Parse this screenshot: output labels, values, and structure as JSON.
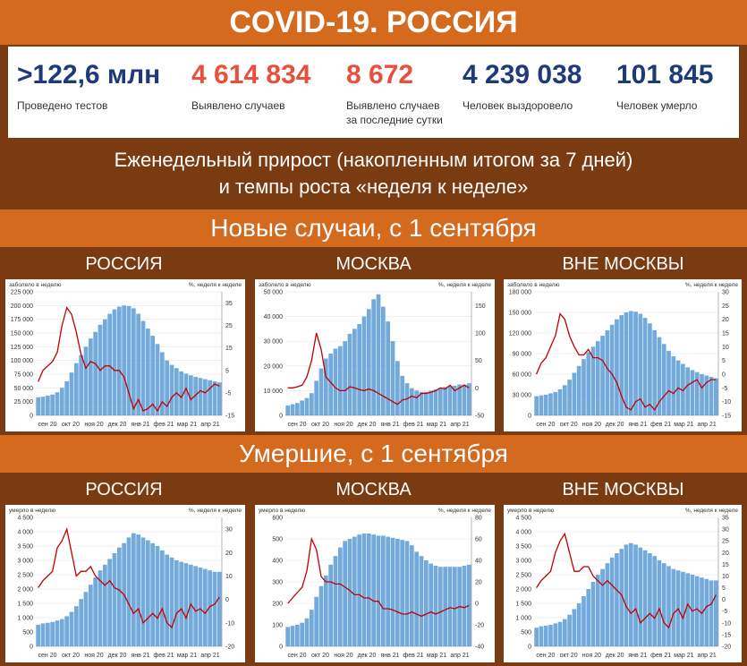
{
  "header": {
    "title": "COVID-19. РОССИЯ"
  },
  "stats": [
    {
      "value": ">122,6 млн",
      "label": "Проведено тестов",
      "color": "#1e3a7a"
    },
    {
      "value": "4 614 834",
      "label": "Выявлено случаев",
      "color": "#e8503c"
    },
    {
      "value": "8 672",
      "label": "Выявлено случаев за последние сутки",
      "color": "#e8503c"
    },
    {
      "value": "4 239 038",
      "label": "Человек выздоровело",
      "color": "#1e3a7a"
    },
    {
      "value": "101 845",
      "label": "Человек умерло",
      "color": "#1e3a7a"
    }
  ],
  "weekly": {
    "line1": "Еженедельный прирост (накопленным итогом за 7 дней)",
    "line2": "и темпы роста «неделя к неделе»"
  },
  "sections": {
    "new_cases": "Новые случаи, с 1 сентября",
    "deaths": "Умершие, с 1 сентября"
  },
  "columns": [
    "РОССИЯ",
    "МОСКВА",
    "ВНЕ МОСКВЫ"
  ],
  "colors": {
    "bars": "#5b9bd5",
    "line": "#c00000",
    "accent": "#d46a1e",
    "dark": "#7a3a12"
  },
  "chart_data": [
    {
      "type": "bar+line",
      "region": "РОССИЯ",
      "metric": "new_cases",
      "left_label": "заболело в неделю",
      "right_label": "%, неделя к неделе",
      "left_ylim": [
        0,
        225000
      ],
      "left_ticks": [
        "0",
        "25 000",
        "50 000",
        "75 000",
        "100 000",
        "125 000",
        "150 000",
        "175 000",
        "200 000",
        "225 000"
      ],
      "right_ylim": [
        -15,
        40
      ],
      "right_ticks": [
        "-15",
        "-5",
        "5",
        "15",
        "25",
        "35"
      ],
      "x_labels": [
        "сен 20",
        "окт 20",
        "ноя 20",
        "дек 20",
        "янв 21",
        "фев 21",
        "мар 21",
        "апр 21"
      ],
      "bars": [
        33000,
        34000,
        36000,
        38000,
        42000,
        50000,
        62000,
        78000,
        95000,
        110000,
        125000,
        140000,
        152000,
        165000,
        175000,
        185000,
        193000,
        198000,
        200000,
        199000,
        195000,
        185000,
        172000,
        158000,
        145000,
        130000,
        115000,
        100000,
        92000,
        86000,
        80000,
        76000,
        73000,
        70000,
        68000,
        66000,
        64000,
        62000,
        60000
      ],
      "line": [
        0,
        5,
        7,
        9,
        13,
        25,
        33,
        30,
        22,
        12,
        6,
        9,
        8,
        5,
        7,
        7,
        5,
        5,
        2,
        -5,
        -12,
        -8,
        -13,
        -12,
        -10,
        -13,
        -9,
        -11,
        -7,
        -5,
        -7,
        -3,
        -8,
        -6,
        -4,
        -5,
        -3,
        -1,
        -2
      ]
    },
    {
      "type": "bar+line",
      "region": "МОСКВА",
      "metric": "new_cases",
      "left_label": "заболело в неделю",
      "right_label": "%, неделя к неделе",
      "left_ylim": [
        0,
        50000
      ],
      "left_ticks": [
        "0",
        "10 000",
        "20 000",
        "30 000",
        "40 000",
        "50 000"
      ],
      "right_ylim": [
        -50,
        175
      ],
      "right_ticks": [
        "-50",
        "0",
        "50",
        "100",
        "150"
      ],
      "x_labels": [
        "сен 20",
        "окт 20",
        "ноя 20",
        "дек 20",
        "янв 21",
        "фев 21",
        "мар 21",
        "апр 21"
      ],
      "bars": [
        4000,
        4500,
        5000,
        6000,
        7000,
        9000,
        14000,
        19000,
        23000,
        25000,
        27000,
        28000,
        30000,
        33000,
        35000,
        37000,
        40000,
        43000,
        47000,
        49000,
        44000,
        38000,
        30000,
        22000,
        16000,
        13000,
        11000,
        10000,
        9500,
        9500,
        10000,
        10500,
        11000,
        11500,
        12000,
        12000,
        12500,
        12500,
        13000
      ],
      "line": [
        0,
        0,
        2,
        5,
        20,
        50,
        100,
        70,
        20,
        10,
        0,
        -5,
        -5,
        2,
        0,
        -3,
        -5,
        -2,
        -5,
        -10,
        -15,
        -20,
        -25,
        -30,
        -22,
        -20,
        -15,
        -18,
        -10,
        -10,
        -8,
        -5,
        0,
        -2,
        5,
        -5,
        0,
        5,
        0
      ]
    },
    {
      "type": "bar+line",
      "region": "ВНЕ МОСКВЫ",
      "metric": "new_cases",
      "left_label": "заболело в неделю",
      "right_label": "%, неделя к неделе",
      "left_ylim": [
        0,
        180000
      ],
      "left_ticks": [
        "0",
        "30 000",
        "60 000",
        "90 000",
        "120 000",
        "150 000",
        "180 000"
      ],
      "right_ylim": [
        -15,
        30
      ],
      "right_ticks": [
        "-15",
        "-10",
        "-5",
        "0",
        "5",
        "10",
        "15",
        "20",
        "25",
        "30"
      ],
      "x_labels": [
        "сен 20",
        "окт 20",
        "ноя 20",
        "дек 20",
        "янв 21",
        "фев 21",
        "мар 21",
        "апр 21"
      ],
      "bars": [
        28000,
        29000,
        30000,
        32000,
        34000,
        38000,
        44000,
        52000,
        62000,
        72000,
        82000,
        92000,
        100000,
        108000,
        116000,
        124000,
        132000,
        140000,
        146000,
        150000,
        152000,
        151000,
        148000,
        142000,
        134000,
        124000,
        114000,
        104000,
        94000,
        86000,
        80000,
        75000,
        70000,
        66000,
        63000,
        60000,
        58000,
        56000,
        54000
      ],
      "line": [
        0,
        4,
        6,
        10,
        14,
        22,
        20,
        14,
        10,
        7,
        7,
        9,
        6,
        6,
        5,
        2,
        0,
        -3,
        -8,
        -12,
        -13,
        -10,
        -9,
        -12,
        -11,
        -13,
        -10,
        -8,
        -6,
        -7,
        -5,
        -6,
        -4,
        -3,
        -2,
        -5,
        -3,
        -2,
        -2
      ]
    },
    {
      "type": "bar+line",
      "region": "РОССИЯ",
      "metric": "deaths",
      "left_label": "умерло в неделю",
      "right_label": "%, неделя к неделе",
      "left_ylim": [
        0,
        4500
      ],
      "left_ticks": [
        "0",
        "500",
        "1 000",
        "1 500",
        "2 000",
        "2 500",
        "3 000",
        "3 500",
        "4 000",
        "4 500"
      ],
      "right_ylim": [
        -20,
        35
      ],
      "right_ticks": [
        "-20",
        "-10",
        "0",
        "10",
        "20",
        "30"
      ],
      "x_labels": [
        "сен 20",
        "окт 20",
        "ноя 20",
        "дек 20",
        "янв 21",
        "фев 21",
        "мар 21",
        "апр 21"
      ],
      "bars": [
        750,
        800,
        820,
        850,
        900,
        950,
        1050,
        1200,
        1400,
        1650,
        1900,
        2150,
        2400,
        2650,
        2850,
        3050,
        3250,
        3450,
        3600,
        3800,
        3950,
        3900,
        3800,
        3700,
        3600,
        3500,
        3350,
        3200,
        3100,
        3000,
        2950,
        2900,
        2850,
        2800,
        2750,
        2700,
        2650,
        2600,
        2600
      ],
      "line": [
        5,
        8,
        10,
        12,
        22,
        25,
        30,
        20,
        10,
        12,
        12,
        14,
        10,
        8,
        6,
        8,
        5,
        4,
        2,
        -2,
        -6,
        -4,
        -10,
        -8,
        -6,
        -8,
        -4,
        -10,
        -12,
        -6,
        -4,
        -8,
        -2,
        -5,
        -4,
        -6,
        -3,
        -2,
        1
      ]
    },
    {
      "type": "bar+line",
      "region": "МОСКВА",
      "metric": "deaths",
      "left_label": "умерло в неделю",
      "right_label": "%, неделя к неделе",
      "left_ylim": [
        0,
        600
      ],
      "left_ticks": [
        "0",
        "100",
        "200",
        "300",
        "400",
        "500",
        "600"
      ],
      "right_ylim": [
        -40,
        80
      ],
      "right_ticks": [
        "-40",
        "-20",
        "0",
        "20",
        "40",
        "60",
        "80"
      ],
      "x_labels": [
        "сен 20",
        "окт 20",
        "ноя 20",
        "дек 20",
        "янв 21",
        "фев 21",
        "мар 21",
        "апр 21"
      ],
      "bars": [
        90,
        95,
        100,
        110,
        130,
        170,
        230,
        280,
        330,
        380,
        420,
        460,
        490,
        500,
        510,
        520,
        525,
        525,
        520,
        515,
        515,
        510,
        505,
        500,
        495,
        490,
        470,
        440,
        420,
        400,
        385,
        375,
        370,
        370,
        370,
        370,
        370,
        375,
        380
      ],
      "line": [
        0,
        5,
        10,
        15,
        30,
        60,
        50,
        25,
        20,
        20,
        18,
        18,
        15,
        12,
        8,
        8,
        5,
        5,
        2,
        2,
        -5,
        -5,
        -6,
        -8,
        -10,
        -10,
        -8,
        -10,
        -12,
        -10,
        -8,
        -10,
        -8,
        -6,
        -4,
        -5,
        -3,
        -4,
        -2
      ]
    },
    {
      "type": "bar+line",
      "region": "ВНЕ МОСКВЫ",
      "metric": "deaths",
      "left_label": "умерло в неделю",
      "right_label": "%, неделя к неделе",
      "left_ylim": [
        0,
        4500
      ],
      "left_ticks": [
        "0",
        "500",
        "1 000",
        "1 500",
        "2 000",
        "2 500",
        "3 000",
        "3 500",
        "4 000",
        "4 500"
      ],
      "right_ylim": [
        -20,
        35
      ],
      "right_ticks": [
        "-20",
        "-15",
        "-10",
        "-5",
        "0",
        "5",
        "10",
        "15",
        "20",
        "25",
        "30",
        "35"
      ],
      "x_labels": [
        "сен 20",
        "окт 20",
        "ноя 20",
        "дек 20",
        "янв 21",
        "фев 21",
        "мар 21",
        "апр 21"
      ],
      "bars": [
        650,
        700,
        720,
        750,
        800,
        850,
        950,
        1100,
        1300,
        1500,
        1750,
        2000,
        2250,
        2500,
        2700,
        2900,
        3100,
        3250,
        3400,
        3550,
        3600,
        3550,
        3450,
        3350,
        3250,
        3150,
        3000,
        2900,
        2800,
        2700,
        2650,
        2600,
        2550,
        2500,
        2450,
        2400,
        2350,
        2300,
        2300
      ],
      "line": [
        5,
        8,
        10,
        12,
        20,
        25,
        28,
        20,
        12,
        12,
        14,
        14,
        10,
        8,
        6,
        8,
        6,
        4,
        2,
        -3,
        -6,
        -4,
        -10,
        -8,
        -6,
        -8,
        -4,
        -10,
        -12,
        -6,
        -4,
        -8,
        -2,
        -5,
        -4,
        -6,
        -3,
        -2,
        2
      ]
    }
  ]
}
